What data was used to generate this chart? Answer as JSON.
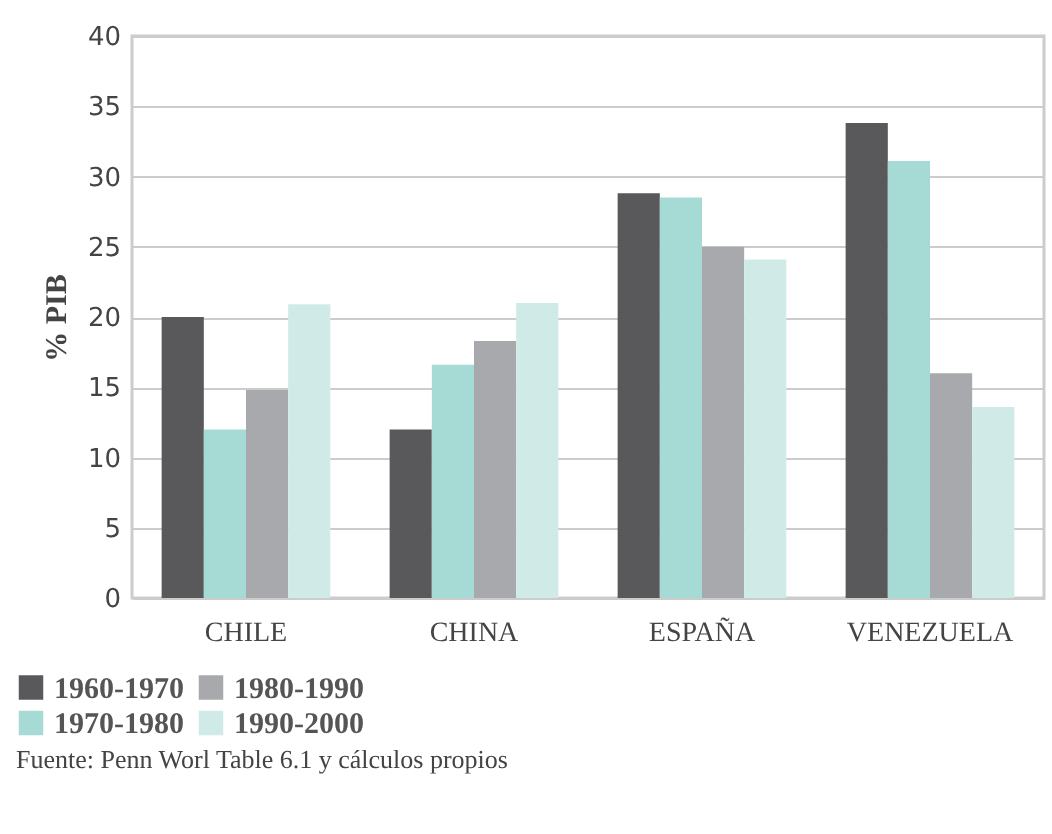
{
  "chart_data": {
    "type": "bar",
    "ylabel": "% PIB",
    "categories": [
      "CHILE",
      "CHINA",
      "ESPAÑA",
      "VENEZUELA"
    ],
    "series": [
      {
        "name": "1960-1970",
        "color": "#59595b",
        "values": [
          20.0,
          12.0,
          28.8,
          33.8
        ]
      },
      {
        "name": "1970-1980",
        "color": "#a6dbd5",
        "values": [
          12.0,
          16.6,
          28.5,
          31.1
        ]
      },
      {
        "name": "1980-1990",
        "color": "#a8a9ac",
        "values": [
          14.8,
          18.3,
          25.0,
          16.0
        ]
      },
      {
        "name": "1990-2000",
        "color": "#d0ebe7",
        "values": [
          20.9,
          21.0,
          24.1,
          13.6
        ]
      }
    ],
    "ylim": [
      0,
      40
    ],
    "yticks": [
      0,
      5,
      10,
      15,
      20,
      25,
      30,
      35,
      40
    ],
    "grid": "y",
    "legend": "bottom left",
    "annotations": [
      "Fuente: Penn Worl Table 6.1 y cálculos propios"
    ]
  }
}
